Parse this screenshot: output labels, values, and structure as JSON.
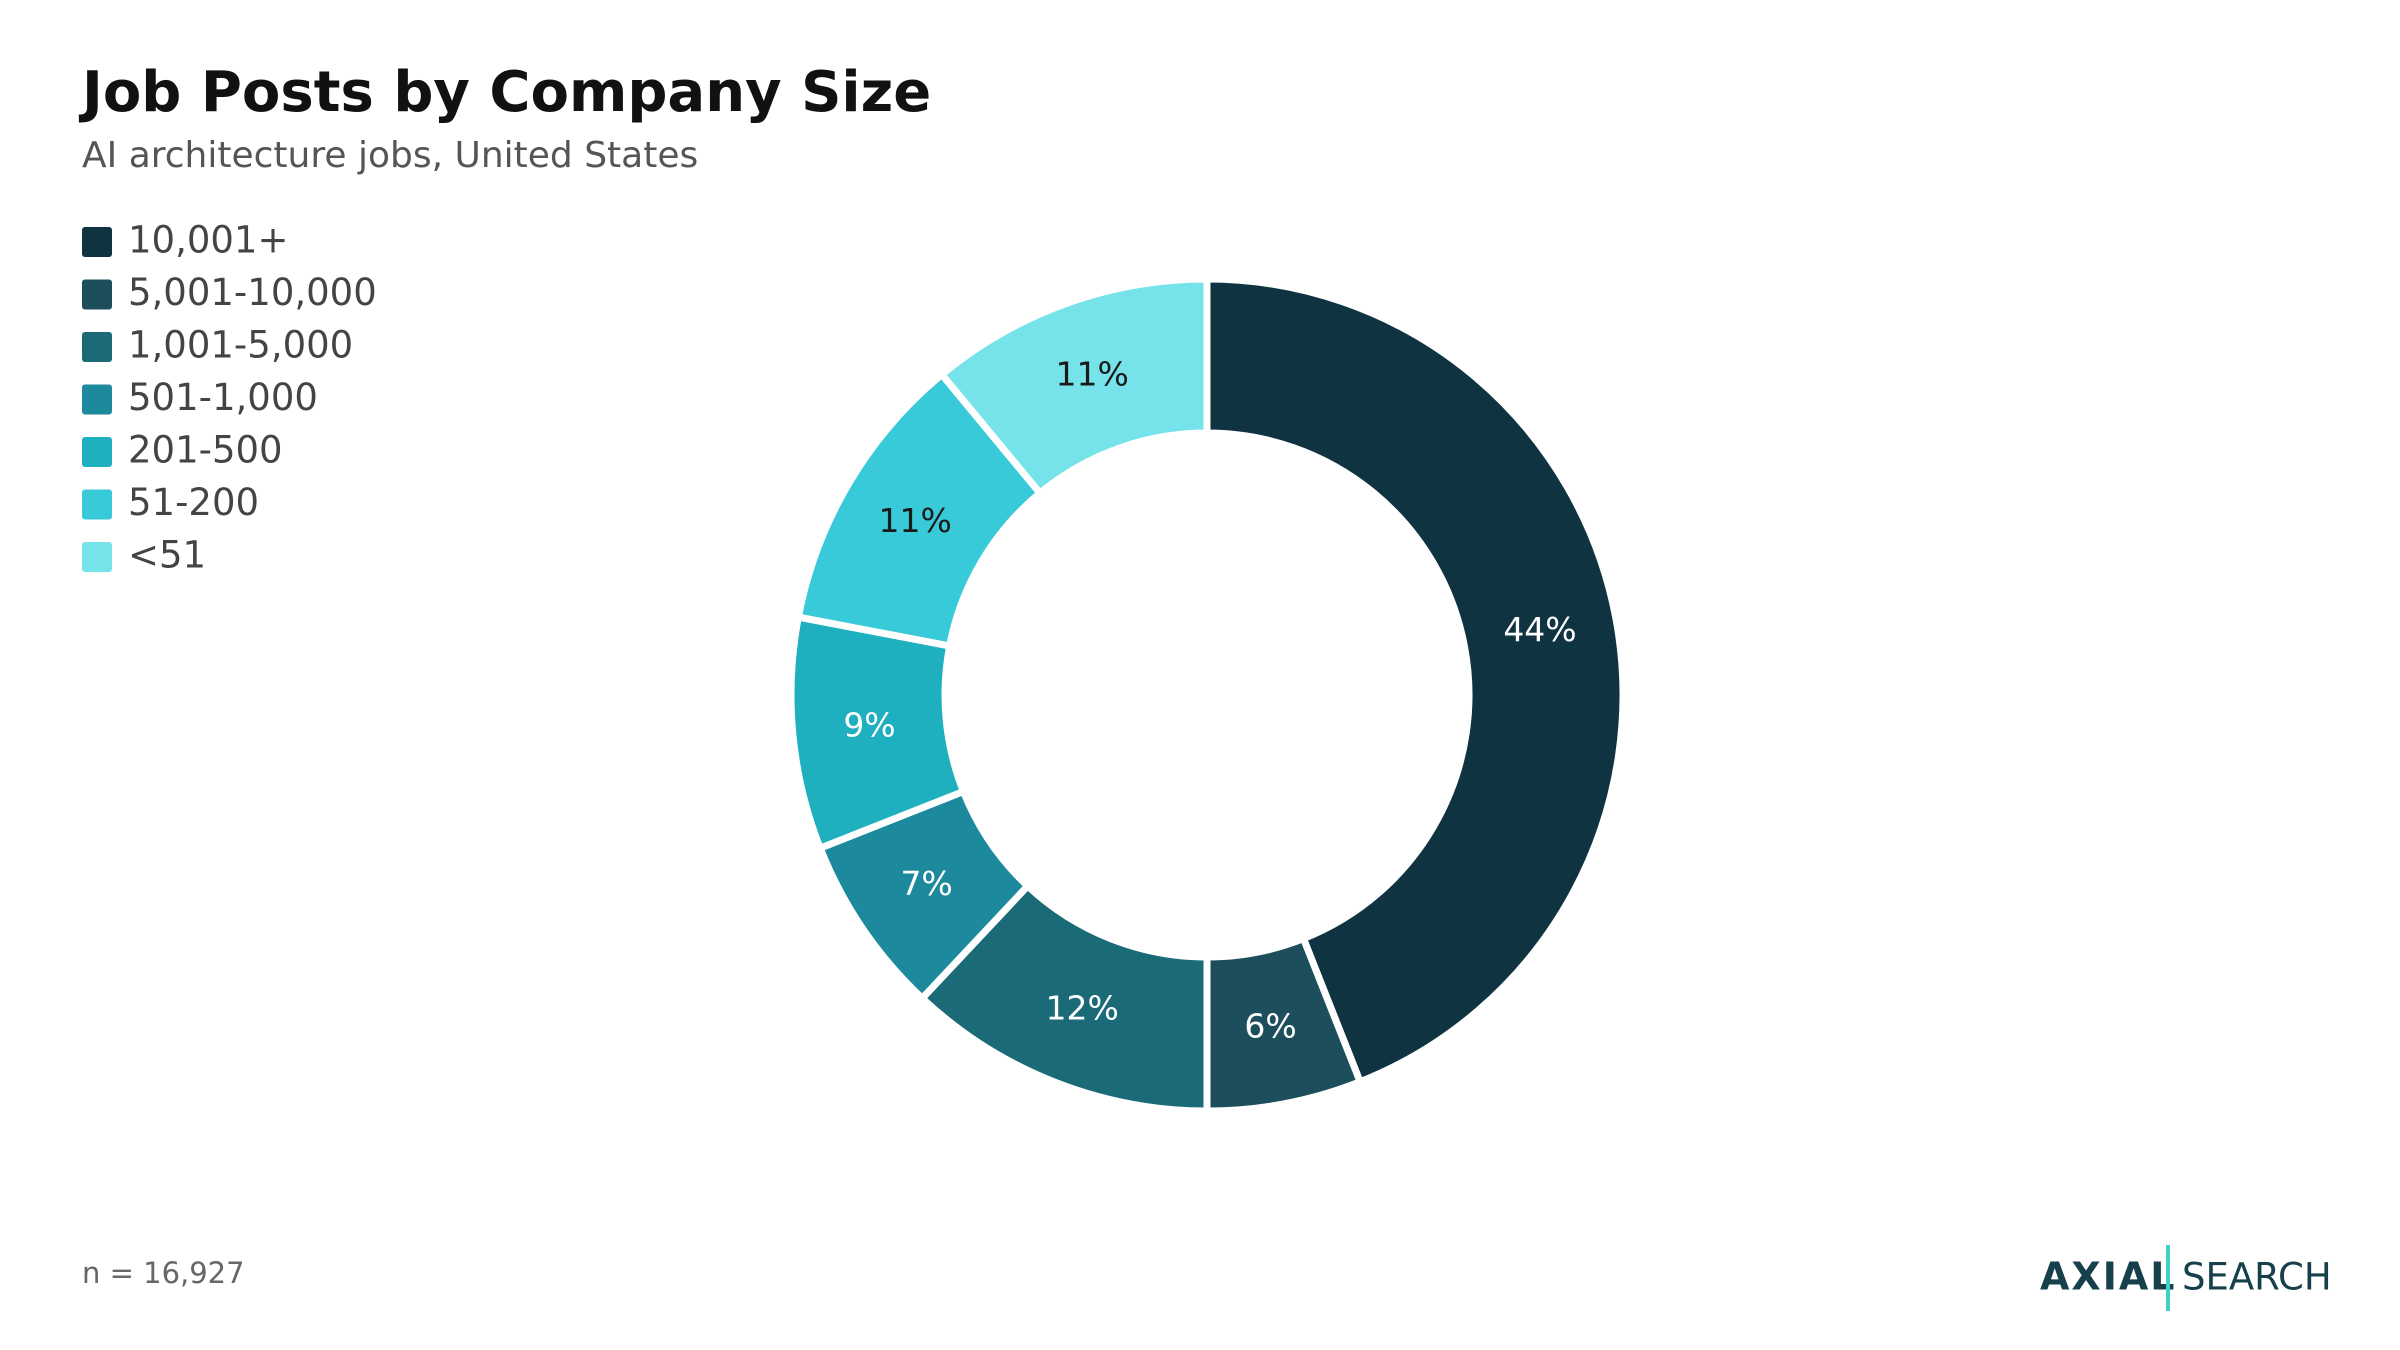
{
  "chart_data": {
    "type": "donut",
    "title": "Job Posts by Company Size",
    "subtitle": "AI architecture jobs, United States",
    "categories": [
      "10,001+",
      "5,001-10,000",
      "1,001-5,000",
      "501-1,000",
      "201-500",
      "51-200",
      "<51"
    ],
    "values": [
      44,
      6,
      12,
      7,
      9,
      11,
      11
    ],
    "value_labels": [
      "44%",
      "6%",
      "12%",
      "7%",
      "9%",
      "11%",
      "11%"
    ],
    "colors": [
      "#0f3340",
      "#1d4e5c",
      "#1b6a78",
      "#1c8a9c",
      "#1fb0c0",
      "#38cad8",
      "#76e2ea"
    ],
    "legend": "top-left",
    "footnote": "n = 16,927"
  },
  "branding": {
    "logo": "AXIAL",
    "product": "SEARCH"
  }
}
